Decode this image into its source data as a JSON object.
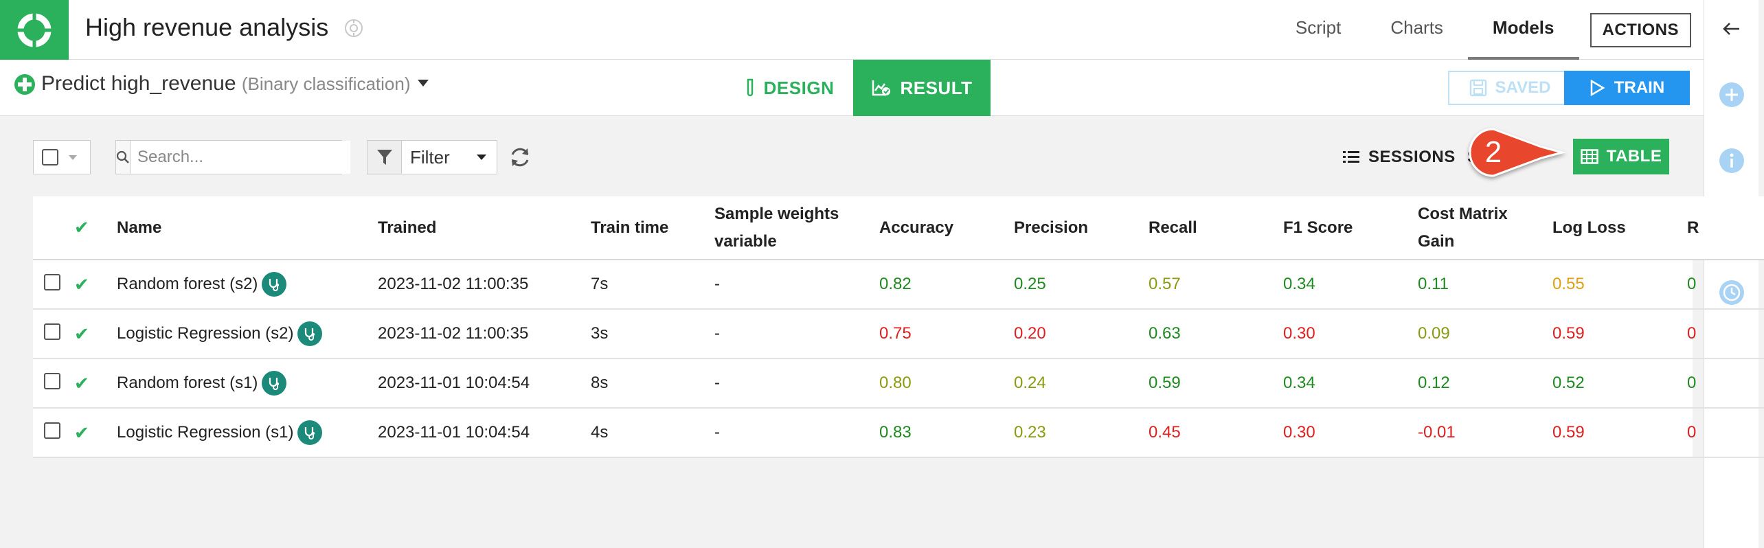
{
  "header": {
    "app_title": "High revenue analysis",
    "nav": [
      "Script",
      "Charts",
      "Models"
    ],
    "active_nav": "Models",
    "actions_label": "ACTIONS"
  },
  "analysis": {
    "title": "Predict high_revenue",
    "subtitle": "(Binary classification)",
    "tabs": {
      "design": "DESIGN",
      "result": "RESULT"
    },
    "saved_label": "SAVED",
    "train_label": "TRAIN"
  },
  "toolbar": {
    "search_placeholder": "Search...",
    "filter_label": "Filter",
    "sessions_label": "SESSIONS",
    "hidden_label": "S",
    "table_label": "TABLE",
    "callout_number": "2"
  },
  "table": {
    "headers": {
      "name": "Name",
      "trained": "Trained",
      "train_time": "Train time",
      "sample_weights": "Sample weights variable",
      "accuracy": "Accuracy",
      "precision": "Precision",
      "recall": "Recall",
      "f1": "F1 Score",
      "cost_matrix": "Cost Matrix Gain",
      "log_loss": "Log Loss",
      "next": "R"
    },
    "rows": [
      {
        "name": "Random forest (s2)",
        "trained": "2023-11-02 11:00:35",
        "train_time": "7s",
        "sample_weights": "-",
        "accuracy": "0.82",
        "precision": "0.25",
        "recall": "0.57",
        "f1": "0.34",
        "cost_matrix": "0.11",
        "log_loss": "0.55",
        "next": "0"
      },
      {
        "name": "Logistic Regression (s2)",
        "trained": "2023-11-02 11:00:35",
        "train_time": "3s",
        "sample_weights": "-",
        "accuracy": "0.75",
        "precision": "0.20",
        "recall": "0.63",
        "f1": "0.30",
        "cost_matrix": "0.09",
        "log_loss": "0.59",
        "next": "0"
      },
      {
        "name": "Random forest (s1)",
        "trained": "2023-11-01 10:04:54",
        "train_time": "8s",
        "sample_weights": "-",
        "accuracy": "0.80",
        "precision": "0.24",
        "recall": "0.59",
        "f1": "0.34",
        "cost_matrix": "0.12",
        "log_loss": "0.52",
        "next": "0"
      },
      {
        "name": "Logistic Regression (s1)",
        "trained": "2023-11-01 10:04:54",
        "train_time": "4s",
        "sample_weights": "-",
        "accuracy": "0.83",
        "precision": "0.23",
        "recall": "0.45",
        "f1": "0.30",
        "cost_matrix": "-0.01",
        "log_loss": "0.59",
        "next": "0"
      }
    ]
  },
  "colors": {
    "brand_green": "#2bb05c",
    "train_blue": "#2496f0",
    "metric_good": "#1f8a1f",
    "metric_mid": "#8c9a10",
    "metric_bad": "#e02020",
    "metric_warn": "#e0a010",
    "callout_red": "#e8472f"
  }
}
